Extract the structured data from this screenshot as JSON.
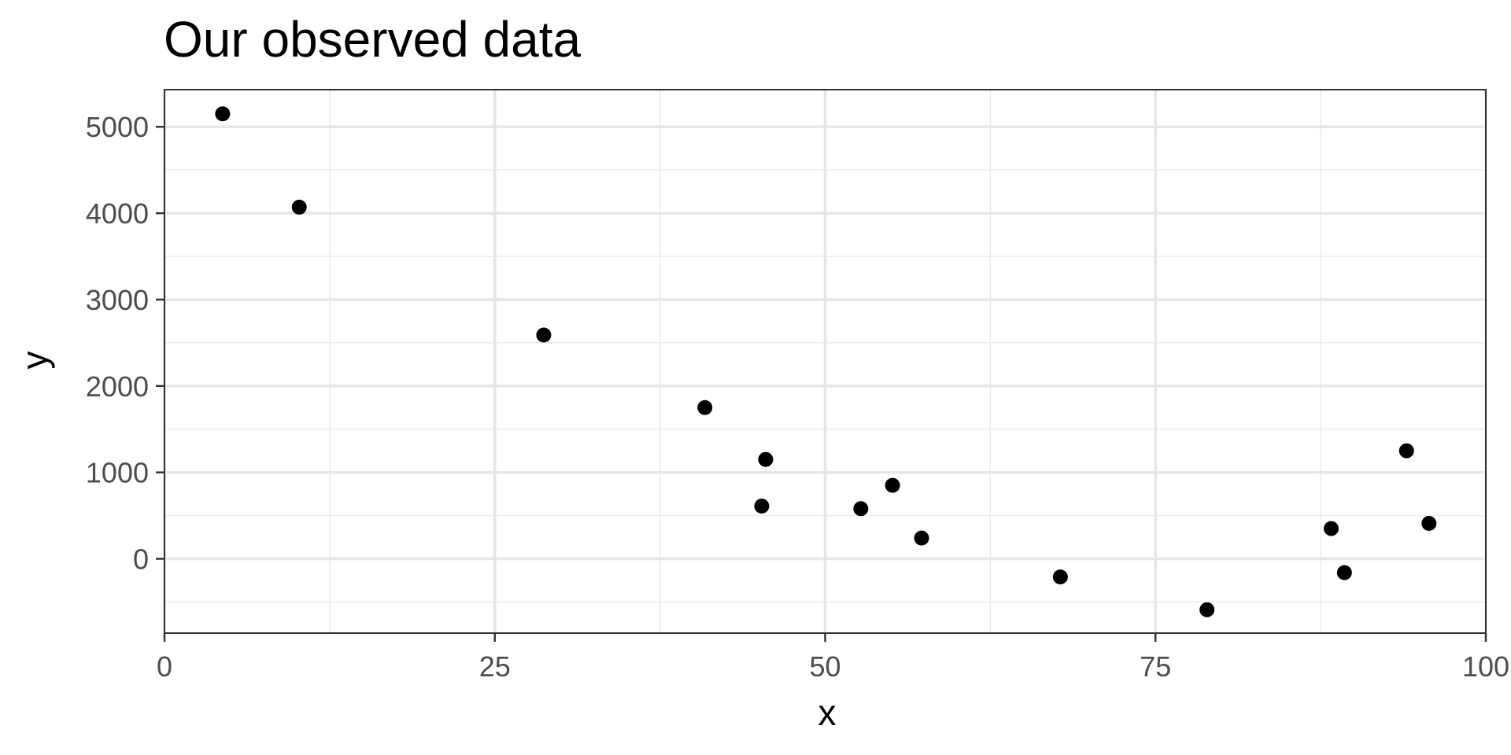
{
  "chart_data": {
    "type": "scatter",
    "title": "Our observed data",
    "xlabel": "x",
    "ylabel": "y",
    "xlim": [
      0,
      100
    ],
    "ylim": [
      -860,
      5430
    ],
    "x_ticks": [
      0,
      25,
      50,
      75,
      100
    ],
    "x_minor_ticks": [
      12.5,
      37.5,
      62.5,
      87.5
    ],
    "y_ticks": [
      0,
      1000,
      2000,
      3000,
      4000,
      5000
    ],
    "y_minor_ticks": [
      -500,
      500,
      1500,
      2500,
      3500,
      4500
    ],
    "grid": true,
    "point_color": "#000000",
    "series": [
      {
        "points": [
          {
            "x": 4.4,
            "y": 5150
          },
          {
            "x": 10.2,
            "y": 4070
          },
          {
            "x": 28.7,
            "y": 2590
          },
          {
            "x": 40.9,
            "y": 1750
          },
          {
            "x": 45.2,
            "y": 610
          },
          {
            "x": 45.5,
            "y": 1150
          },
          {
            "x": 52.7,
            "y": 580
          },
          {
            "x": 55.1,
            "y": 850
          },
          {
            "x": 57.3,
            "y": 240
          },
          {
            "x": 67.8,
            "y": -210
          },
          {
            "x": 78.9,
            "y": -590
          },
          {
            "x": 88.3,
            "y": 350
          },
          {
            "x": 89.3,
            "y": -160
          },
          {
            "x": 94.0,
            "y": 1250
          },
          {
            "x": 95.7,
            "y": 410
          }
        ]
      }
    ]
  }
}
